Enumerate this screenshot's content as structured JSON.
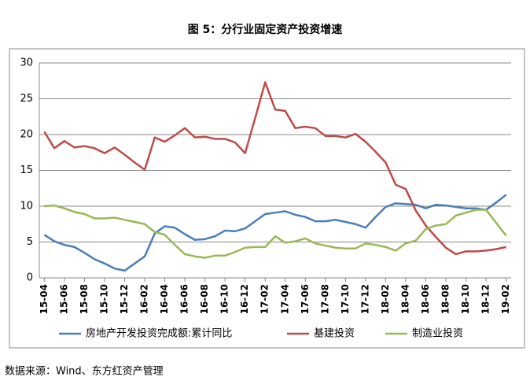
{
  "chart_data": {
    "type": "line",
    "title": "图 5：分行业固定资产投资增速",
    "source": "数据来源：Wind、东方红资产管理",
    "categories": [
      "15-04",
      null,
      "15-06",
      null,
      "15-08",
      null,
      "15-10",
      null,
      "15-12",
      null,
      "16-02",
      null,
      "16-04",
      null,
      "16-06",
      null,
      "16-08",
      null,
      "16-10",
      null,
      "16-12",
      null,
      "17-02",
      null,
      "17-04",
      null,
      "17-06",
      null,
      "17-08",
      null,
      "17-10",
      null,
      "17-12",
      null,
      "18-02",
      null,
      "18-04",
      null,
      "18-06",
      null,
      "18-08",
      null,
      "18-10",
      null,
      "18-12",
      null,
      "19-02"
    ],
    "series": [
      {
        "name": "房地产开发投资完成额:累计同比",
        "color": "#4a7ebb",
        "values": [
          6.0,
          5.1,
          4.6,
          4.3,
          3.5,
          2.6,
          2.0,
          1.3,
          1.0,
          2.0,
          3.0,
          6.2,
          7.2,
          7.0,
          6.1,
          5.3,
          5.4,
          5.8,
          6.6,
          6.5,
          6.9,
          7.9,
          8.9,
          9.1,
          9.3,
          8.8,
          8.5,
          7.9,
          7.9,
          8.1,
          7.8,
          7.5,
          7.0,
          8.5,
          9.9,
          10.4,
          10.3,
          10.2,
          9.7,
          10.2,
          10.1,
          9.9,
          9.7,
          9.7,
          9.5,
          10.5,
          11.6
        ]
      },
      {
        "name": "基建投资",
        "color": "#be4b48",
        "values": [
          20.4,
          18.1,
          19.1,
          18.2,
          18.4,
          18.1,
          17.4,
          18.2,
          17.2,
          16.1,
          15.1,
          19.6,
          19.0,
          19.9,
          20.9,
          19.6,
          19.7,
          19.4,
          19.4,
          18.9,
          17.4,
          22.3,
          27.3,
          23.5,
          23.3,
          20.9,
          21.1,
          20.9,
          19.8,
          19.8,
          19.6,
          20.1,
          19.0,
          17.6,
          16.1,
          13.0,
          12.4,
          9.4,
          7.3,
          5.7,
          4.2,
          3.3,
          3.7,
          3.7,
          3.8,
          4.0,
          4.3
        ]
      },
      {
        "name": "制造业投资",
        "color": "#98b954",
        "values": [
          10.0,
          10.1,
          9.7,
          9.2,
          8.9,
          8.3,
          8.3,
          8.4,
          8.1,
          7.8,
          7.5,
          6.4,
          6.0,
          4.6,
          3.3,
          3.0,
          2.8,
          3.1,
          3.1,
          3.6,
          4.2,
          4.3,
          4.3,
          5.8,
          4.9,
          5.1,
          5.5,
          4.8,
          4.5,
          4.2,
          4.1,
          4.1,
          4.8,
          4.6,
          4.3,
          3.8,
          4.8,
          5.2,
          6.8,
          7.3,
          7.5,
          8.7,
          9.1,
          9.5,
          9.5,
          7.7,
          5.9
        ]
      }
    ],
    "ylim": [
      0,
      30
    ],
    "yticks": [
      0,
      5,
      10,
      15,
      20,
      25,
      30
    ],
    "grid": true
  }
}
